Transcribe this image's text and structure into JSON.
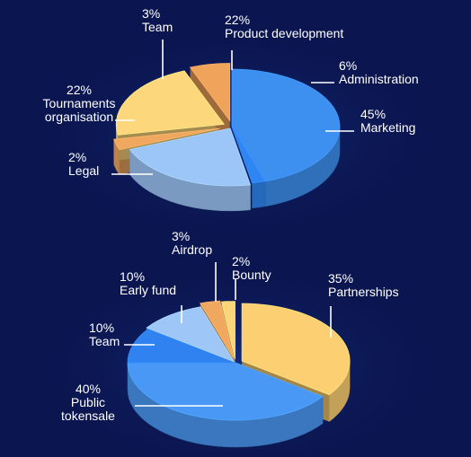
{
  "chart_data": [
    {
      "type": "pie",
      "slices": [
        {
          "label": "Marketing",
          "value": 45,
          "value_label": "45%",
          "color": "#3d8ff0"
        },
        {
          "label": "Legal",
          "value": 2,
          "value_label": "2%",
          "color": "#2f86f2"
        },
        {
          "label": "Tournaments organisation",
          "value": 22,
          "value_label": "22%",
          "color": "#9cc6f7"
        },
        {
          "label": "Team",
          "value": 3,
          "value_label": "3%",
          "color": "#f0a860"
        },
        {
          "label": "Product development",
          "value": 22,
          "value_label": "22%",
          "color": "#fcd77c"
        },
        {
          "label": "Administration",
          "value": 6,
          "value_label": "6%",
          "color": "#f0a35a"
        }
      ],
      "label_lines": {
        "Marketing": [
          "45%",
          "Marketing"
        ],
        "Legal": [
          "2%",
          "Legal"
        ],
        "Tournaments organisation": [
          "22%",
          "Tournaments",
          "organisation"
        ],
        "Team": [
          "3%",
          "Team"
        ],
        "Product development": [
          "22%",
          "Product development"
        ],
        "Administration": [
          "6%",
          "Administration"
        ]
      }
    },
    {
      "type": "pie",
      "slices": [
        {
          "label": "Partnerships",
          "value": 35,
          "value_label": "35%",
          "color": "#fbcf72"
        },
        {
          "label": "Public tokensale",
          "value": 40,
          "value_label": "40%",
          "color": "#4a98f5"
        },
        {
          "label": "Team",
          "value": 10,
          "value_label": "10%",
          "color": "#2f82ef"
        },
        {
          "label": "Early fund",
          "value": 10,
          "value_label": "10%",
          "color": "#9ec6f6"
        },
        {
          "label": "Airdrop",
          "value": 3,
          "value_label": "3%",
          "color": "#f0a860"
        },
        {
          "label": "Bounty",
          "value": 2,
          "value_label": "2%",
          "color": "#fbd57a"
        }
      ],
      "label_lines": {
        "Partnerships": [
          "35%",
          "Partnerships"
        ],
        "Public tokensale": [
          "40%",
          "Public",
          "tokensale"
        ],
        "Team": [
          "10%",
          "Team"
        ],
        "Early fund": [
          "10%",
          "Early fund"
        ],
        "Airdrop": [
          "3%",
          "Airdrop"
        ],
        "Bounty": [
          "2%",
          "Bounty"
        ]
      }
    }
  ]
}
